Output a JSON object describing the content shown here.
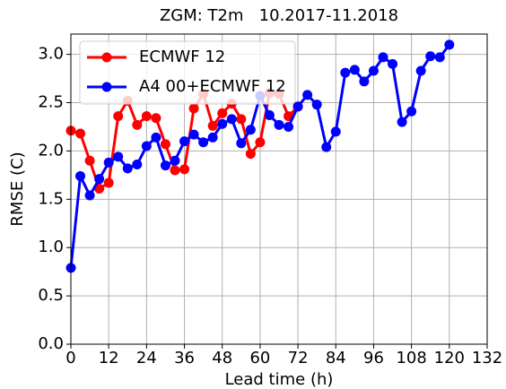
{
  "chart_data": {
    "type": "line",
    "title": "ZGM: T2m   10.2017-11.2018",
    "xlabel": "Lead time (h)",
    "ylabel": "RMSE (C)",
    "x": [
      0,
      3,
      6,
      9,
      12,
      15,
      18,
      21,
      24,
      27,
      30,
      33,
      36,
      39,
      42,
      45,
      48,
      51,
      54,
      57,
      60,
      63,
      66,
      69,
      72,
      75,
      78,
      81,
      84,
      87,
      90,
      93,
      96,
      99,
      102,
      105,
      108,
      111,
      114,
      117,
      120
    ],
    "series": [
      {
        "name": "ECMWF 12",
        "color": "#ff0000",
        "values": [
          2.21,
          2.18,
          1.9,
          1.61,
          1.67,
          2.36,
          2.52,
          2.27,
          2.36,
          2.34,
          2.07,
          1.8,
          1.81,
          2.44,
          2.59,
          2.26,
          2.39,
          2.49,
          2.33,
          1.97,
          2.09,
          2.6,
          2.59,
          2.36,
          2.46,
          null,
          null,
          null,
          null,
          null,
          null,
          null,
          null,
          null,
          null,
          null,
          null,
          null,
          null,
          null,
          null
        ]
      },
      {
        "name": "A4 00+ECMWF 12",
        "color": "#0000ff",
        "values": [
          0.79,
          1.74,
          1.54,
          1.71,
          1.88,
          1.94,
          1.82,
          1.86,
          2.05,
          2.14,
          1.85,
          1.9,
          2.1,
          2.17,
          2.09,
          2.14,
          2.28,
          2.33,
          2.08,
          2.22,
          2.57,
          2.37,
          2.27,
          2.25,
          2.46,
          2.58,
          2.48,
          2.04,
          2.2,
          2.81,
          2.84,
          2.72,
          2.83,
          2.97,
          2.9,
          2.3,
          2.41,
          2.83,
          2.98,
          2.97,
          3.1
        ]
      }
    ],
    "xlim": [
      0,
      132
    ],
    "xticks": [
      0,
      12,
      24,
      36,
      48,
      60,
      72,
      84,
      96,
      108,
      120,
      132
    ],
    "ylim": [
      0,
      3.21
    ],
    "yticks": [
      {
        "value": 0,
        "label": "0.0"
      },
      {
        "value": 0.5,
        "label": "0.5"
      },
      {
        "value": 1,
        "label": "1.0"
      },
      {
        "value": 1.5,
        "label": "1.5"
      },
      {
        "value": 2,
        "label": "2.0"
      },
      {
        "value": 2.5,
        "label": "2.5"
      },
      {
        "value": 3,
        "label": "3.0"
      }
    ],
    "grid": true,
    "legend": "upper-left"
  }
}
